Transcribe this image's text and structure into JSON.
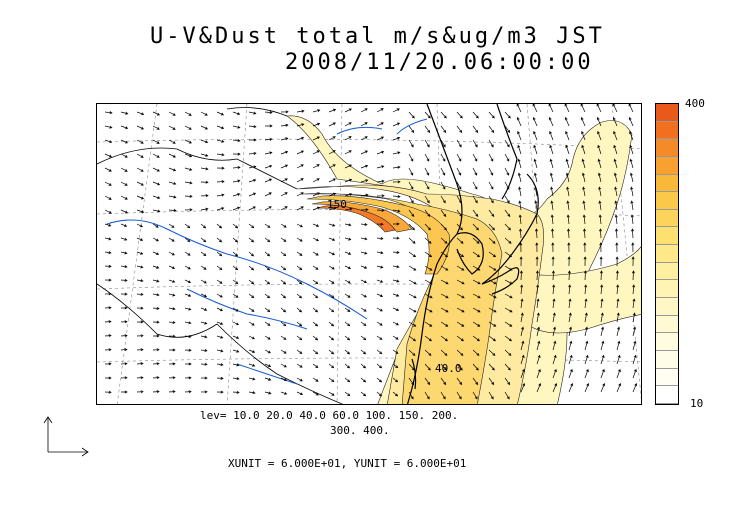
{
  "title": {
    "line1": "U-V&Dust total m/s&ug/m3 JST",
    "line2": "2008/11/20.06:00:00"
  },
  "colorbar": {
    "max_label": "400",
    "min_label": "10",
    "colors": [
      "#e85a1a",
      "#f07020",
      "#f58a28",
      "#f8a030",
      "#fab838",
      "#fbc84a",
      "#fcd45c",
      "#fde070",
      "#fee888",
      "#fef0a0",
      "#fff4b4",
      "#fff8c6",
      "#fffad4",
      "#fffce0",
      "#fffde8",
      "#fffef0",
      "#ffffff"
    ]
  },
  "levels": {
    "line1": "lev= 10.0 20.0 40.0 60.0 100. 150. 200.",
    "line2": "300. 400."
  },
  "contour_labels": {
    "upper": "150",
    "lower": "40.0"
  },
  "units": {
    "text": "XUNIT = 6.000E+01, YUNIT = 6.000E+01"
  }
}
